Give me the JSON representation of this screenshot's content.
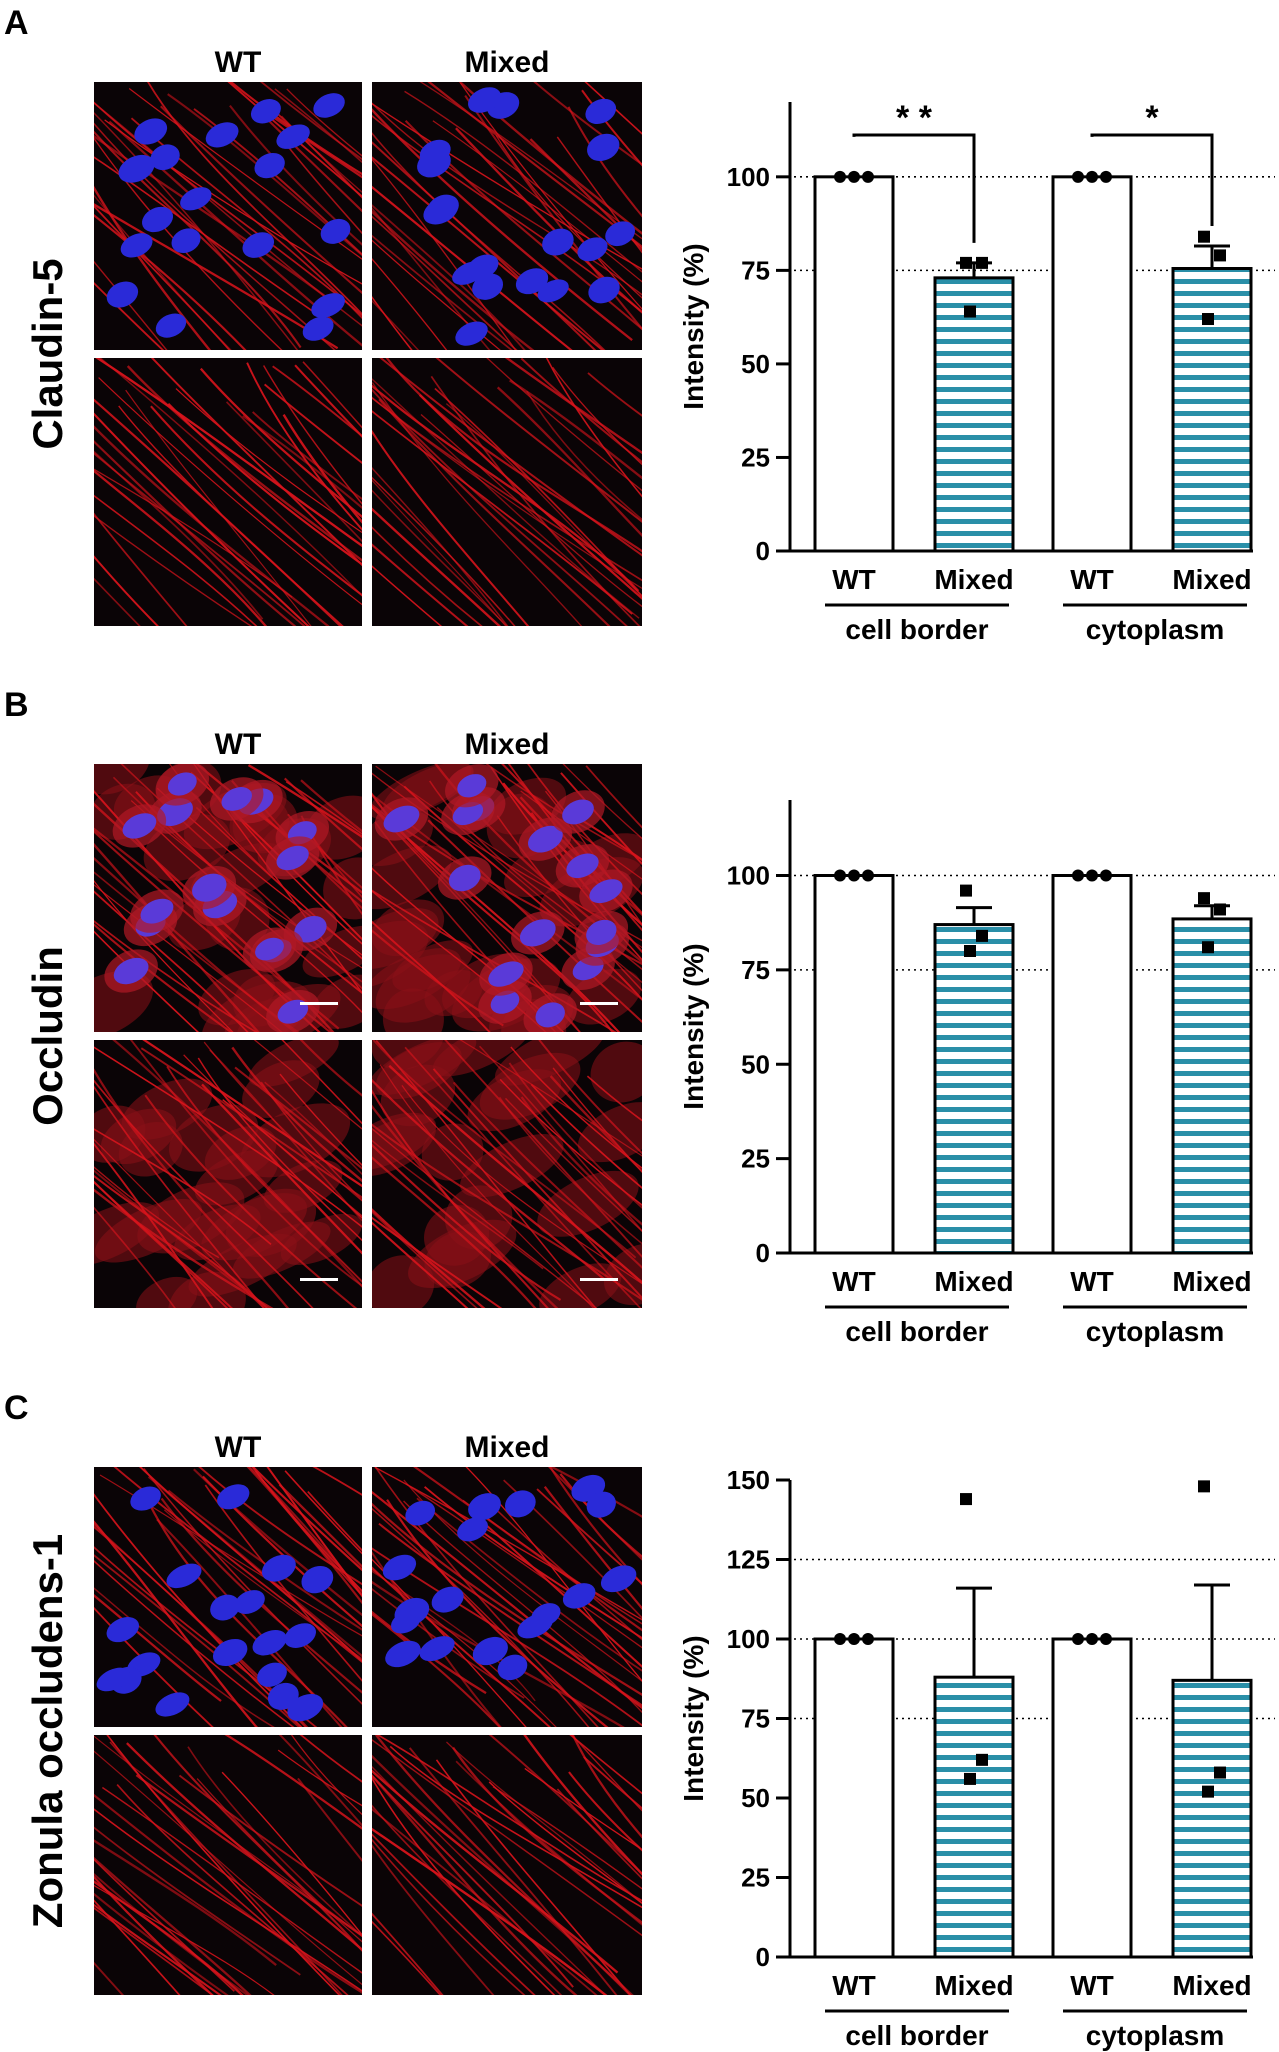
{
  "panels": [
    {
      "letter": "A",
      "protein": "Claudin-5",
      "image_columns": [
        "WT",
        "Mixed"
      ],
      "has_scale_bars": false
    },
    {
      "letter": "B",
      "protein": "Occludin",
      "image_columns": [
        "WT",
        "Mixed"
      ],
      "has_scale_bars": true
    },
    {
      "letter": "C",
      "protein": "Zonula occludens-1",
      "image_columns": [
        "WT",
        "Mixed"
      ],
      "has_scale_bars": false
    }
  ],
  "colors": {
    "image_background": "#0a0406",
    "membrane_red": "#d8141c",
    "nuclei_blue": "#2a2ad8",
    "bar_stripe": "#2a8fa8",
    "bar_outline": "#000000"
  },
  "chart_data": [
    {
      "type": "bar",
      "ylabel": "Intensity (%)",
      "ylim": [
        0,
        120
      ],
      "yticks": [
        0,
        25,
        50,
        75,
        100
      ],
      "reference_lines": [
        75,
        100
      ],
      "categories": [
        "WT",
        "Mixed",
        "WT",
        "Mixed"
      ],
      "groups": [
        {
          "label": "cell border",
          "categories": [
            "WT",
            "Mixed"
          ]
        },
        {
          "label": "cytoplasm",
          "categories": [
            "WT",
            "Mixed"
          ]
        }
      ],
      "values": [
        100,
        73,
        100,
        75.5
      ],
      "error": [
        0,
        4,
        0,
        6
      ],
      "points": [
        [
          100,
          100,
          100
        ],
        [
          77,
          77,
          64
        ],
        [
          100,
          100,
          100
        ],
        [
          84,
          79,
          62
        ]
      ],
      "significance": [
        {
          "from": 0,
          "to": 1,
          "label": "* *"
        },
        {
          "from": 2,
          "to": 3,
          "label": "*"
        }
      ]
    },
    {
      "type": "bar",
      "ylabel": "Intensity (%)",
      "ylim": [
        0,
        120
      ],
      "yticks": [
        0,
        25,
        50,
        75,
        100
      ],
      "reference_lines": [
        75,
        100
      ],
      "categories": [
        "WT",
        "Mixed",
        "WT",
        "Mixed"
      ],
      "groups": [
        {
          "label": "cell border",
          "categories": [
            "WT",
            "Mixed"
          ]
        },
        {
          "label": "cytoplasm",
          "categories": [
            "WT",
            "Mixed"
          ]
        }
      ],
      "values": [
        100,
        87,
        100,
        88.5
      ],
      "error": [
        0,
        4.5,
        0,
        3.5
      ],
      "points": [
        [
          100,
          100,
          100
        ],
        [
          96,
          84,
          80
        ],
        [
          100,
          100,
          100
        ],
        [
          94,
          91,
          81
        ]
      ],
      "significance": []
    },
    {
      "type": "bar",
      "ylabel": "Intensity (%)",
      "ylim": [
        0,
        150
      ],
      "yticks": [
        0,
        25,
        50,
        75,
        100,
        125,
        150
      ],
      "reference_lines": [
        75,
        100,
        125
      ],
      "categories": [
        "WT",
        "Mixed",
        "WT",
        "Mixed"
      ],
      "groups": [
        {
          "label": "cell border",
          "categories": [
            "WT",
            "Mixed"
          ]
        },
        {
          "label": "cytoplasm",
          "categories": [
            "WT",
            "Mixed"
          ]
        }
      ],
      "values": [
        100,
        88,
        100,
        87
      ],
      "error": [
        0,
        28,
        0,
        30
      ],
      "points": [
        [
          100,
          100,
          100
        ],
        [
          144,
          62,
          56
        ],
        [
          100,
          100,
          100
        ],
        [
          148,
          58,
          52
        ]
      ],
      "significance": []
    }
  ]
}
